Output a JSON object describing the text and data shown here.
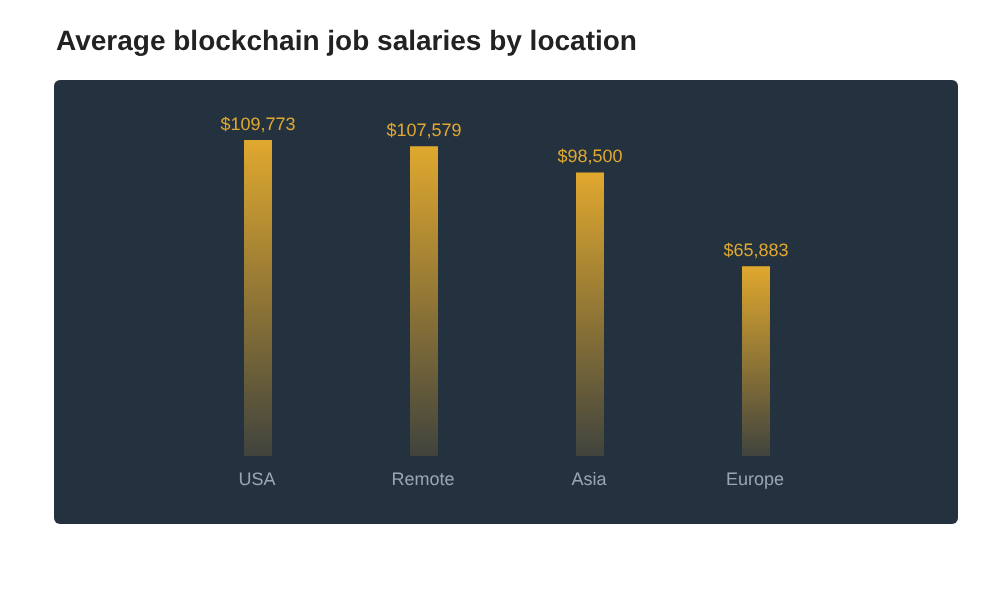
{
  "chart_data": {
    "type": "bar",
    "title": "Average blockchain job salaries by location",
    "categories": [
      "USA",
      "Remote",
      "Asia",
      "Europe"
    ],
    "values": [
      109773,
      107579,
      98500,
      65883
    ],
    "value_labels": [
      "$109,773",
      "$107,579",
      "$98,500",
      "$65,883"
    ],
    "color": "#e0a82e",
    "grid": false,
    "legend": false
  }
}
